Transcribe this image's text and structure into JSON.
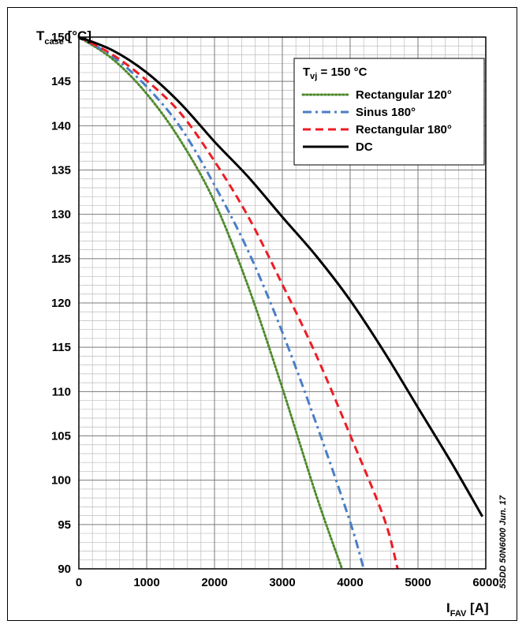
{
  "chart_data": {
    "type": "line",
    "y_title": {
      "main": "T",
      "sub": "case",
      "unit": " [°C]"
    },
    "x_title": {
      "main": "I",
      "sub": "FAV",
      "unit": " [A]"
    },
    "xlim": [
      0,
      6000
    ],
    "ylim": [
      90,
      150
    ],
    "x_ticks": [
      "0",
      "1000",
      "2000",
      "3000",
      "4000",
      "5000",
      "6000"
    ],
    "y_ticks": [
      "150",
      "145",
      "140",
      "135",
      "130",
      "125",
      "120",
      "115",
      "110",
      "105",
      "100",
      "95",
      "90"
    ],
    "grid": {
      "major": true,
      "minor": true
    },
    "legend": {
      "title": {
        "main": "T",
        "sub": "vj",
        "rest": " = 150 °C"
      },
      "placement": "top-right"
    },
    "watermark": "5SDD 50N6000 Jun. 17",
    "series": [
      {
        "name": "Rectangular 120°",
        "color": "#4e8a2c",
        "dash": "dotted",
        "x": [
          0,
          500,
          1000,
          1500,
          2000,
          2500,
          3000,
          3500,
          3880
        ],
        "y": [
          150,
          147.5,
          143.6,
          138.3,
          131.4,
          121.8,
          110.4,
          98.3,
          90
        ]
      },
      {
        "name": "Sinus 180°",
        "color": "#4a7ec5",
        "dash": "dashdot",
        "x": [
          0,
          500,
          1000,
          1500,
          2000,
          2500,
          3000,
          3500,
          4000,
          4200
        ],
        "y": [
          150,
          147.8,
          144.4,
          139.8,
          133.3,
          125.8,
          116.7,
          106.4,
          95.3,
          90
        ]
      },
      {
        "name": "Rectangular 180°",
        "color": "#ee1c24",
        "dash": "dashed",
        "x": [
          0,
          500,
          1000,
          1500,
          2000,
          2500,
          3000,
          3500,
          4000,
          4500,
          4700
        ],
        "y": [
          150,
          148.0,
          145.1,
          141.4,
          136.0,
          129.7,
          122.1,
          114.1,
          105.1,
          95.7,
          90
        ]
      },
      {
        "name": "DC",
        "color": "#000000",
        "dash": "solid",
        "x": [
          0,
          500,
          1000,
          1500,
          2000,
          2500,
          3000,
          3500,
          4000,
          4500,
          5000,
          5500,
          5950
        ],
        "y": [
          150,
          148.5,
          146.0,
          142.5,
          138.2,
          134.2,
          129.7,
          125.3,
          120.3,
          114.5,
          108.2,
          101.9,
          95.9
        ]
      }
    ]
  }
}
